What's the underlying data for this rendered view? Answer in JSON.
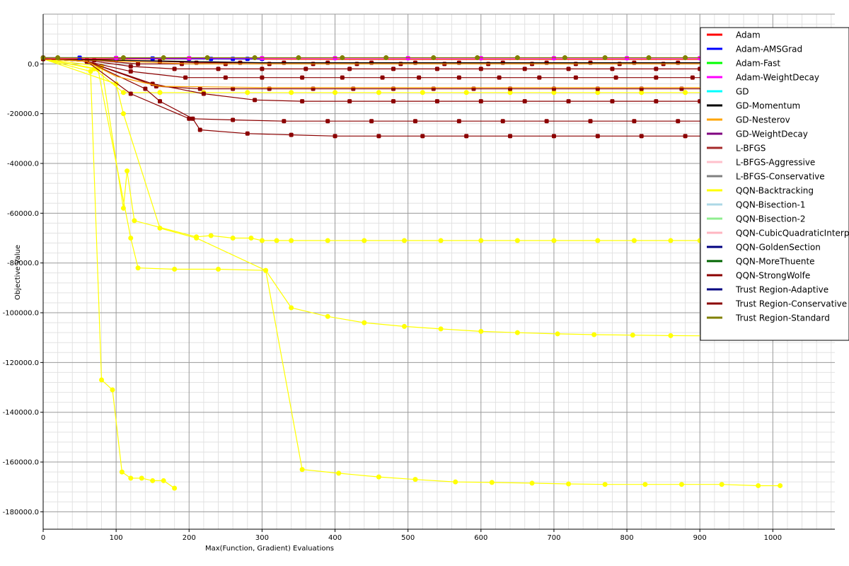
{
  "chart_data": {
    "type": "line",
    "title": "",
    "xlabel": "Max(Function, Gradient) Evaluations",
    "ylabel": "Objective Value",
    "xlim": [
      0,
      1085
    ],
    "ylim": [
      -187000,
      20000
    ],
    "grid": true,
    "legend_position": "top-right",
    "x_ticks": [
      "0",
      "100",
      "200",
      "300",
      "400",
      "500",
      "600",
      "700",
      "800",
      "900",
      "1000"
    ],
    "y_ticks": [
      "0.0",
      "-20000.0",
      "-40000.0",
      "-60000.0",
      "-80000.0",
      "-100000.0",
      "-120000.0",
      "-140000.0",
      "-160000.0",
      "-180000.0"
    ],
    "legend": [
      {
        "name": "Adam",
        "color": "#ff0000"
      },
      {
        "name": "Adam-AMSGrad",
        "color": "#0000ff"
      },
      {
        "name": "Adam-Fast",
        "color": "#00ff00"
      },
      {
        "name": "Adam-WeightDecay",
        "color": "#ff00ff"
      },
      {
        "name": "GD",
        "color": "#00ffff"
      },
      {
        "name": "GD-Momentum",
        "color": "#000000"
      },
      {
        "name": "GD-Nesterov",
        "color": "#ffa500"
      },
      {
        "name": "GD-WeightDecay",
        "color": "#800080"
      },
      {
        "name": "L-BFGS",
        "color": "#a52a2a"
      },
      {
        "name": "L-BFGS-Aggressive",
        "color": "#ffc0cb"
      },
      {
        "name": "L-BFGS-Conservative",
        "color": "#808080"
      },
      {
        "name": "QQN-Backtracking",
        "color": "#ffff00"
      },
      {
        "name": "QQN-Bisection-1",
        "color": "#add8e6"
      },
      {
        "name": "QQN-Bisection-2",
        "color": "#90ee90"
      },
      {
        "name": "QQN-CubicQuadraticInterpolation",
        "color": "#ffb6c1"
      },
      {
        "name": "QQN-GoldenSection",
        "color": "#000080"
      },
      {
        "name": "QQN-MoreThuente",
        "color": "#006400"
      },
      {
        "name": "QQN-StrongWolfe",
        "color": "#8b0000"
      },
      {
        "name": "Trust Region-Adaptive",
        "color": "#000080"
      },
      {
        "name": "Trust Region-Conservative",
        "color": "#8b0000"
      },
      {
        "name": "Trust Region-Standard",
        "color": "#808000"
      }
    ],
    "series": [
      {
        "color": "#ffff00",
        "marker": "circle",
        "x": [
          0,
          65,
          80,
          95,
          108,
          120,
          135,
          150,
          165,
          180
        ],
        "y": [
          2000,
          -3000,
          -127000,
          -131000,
          -164000,
          -166500,
          -166500,
          -167500,
          -167500,
          -170500
        ]
      },
      {
        "color": "#ffff00",
        "marker": "circle",
        "x": [
          0,
          80,
          110,
          115,
          125,
          210,
          230,
          260,
          285,
          300,
          320,
          340,
          390,
          440,
          495,
          545,
          600,
          650,
          700,
          760,
          810,
          860,
          900,
          950,
          1000
        ],
        "y": [
          2000,
          -1000,
          -58000,
          -43000,
          -63000,
          -69500,
          -69000,
          -70000,
          -70000,
          -71000,
          -71000,
          -71000,
          -71000,
          -71000,
          -71000,
          -71000,
          -71000,
          -71000,
          -71000,
          -71000,
          -71000,
          -71000,
          -71000,
          -71000,
          -71000
        ]
      },
      {
        "color": "#ffff00",
        "marker": "circle",
        "x": [
          0,
          75,
          120,
          130,
          180,
          240,
          305,
          340,
          390,
          440,
          495,
          545,
          600,
          650,
          705,
          755,
          808,
          860,
          910,
          960
        ],
        "y": [
          2000,
          -2000,
          -70000,
          -82000,
          -82500,
          -82500,
          -83000,
          -98000,
          -101500,
          -104000,
          -105500,
          -106500,
          -107500,
          -108000,
          -108500,
          -108800,
          -109000,
          -109200,
          -109300,
          -109400
        ]
      },
      {
        "color": "#ffff00",
        "marker": "circle",
        "x": [
          0,
          100,
          110,
          160,
          210,
          305,
          355,
          405,
          460,
          510,
          565,
          615,
          670,
          720,
          770,
          825,
          875,
          930,
          980,
          1010
        ],
        "y": [
          2000,
          -8000,
          -20000,
          -66000,
          -70000,
          -83000,
          -163000,
          -164500,
          -166000,
          -167000,
          -168000,
          -168200,
          -168500,
          -168800,
          -169000,
          -169000,
          -169000,
          -169000,
          -169500,
          -169500
        ]
      },
      {
        "color": "#ffff00",
        "marker": "circle",
        "x": [
          0,
          70,
          110,
          160,
          220,
          280,
          340,
          400,
          460,
          520,
          580,
          640,
          700,
          760,
          820,
          880,
          940,
          1000
        ],
        "y": [
          2000,
          -2000,
          -11500,
          -11500,
          -11500,
          -11500,
          -11500,
          -11500,
          -11500,
          -11500,
          -11500,
          -11500,
          -11500,
          -11500,
          -11500,
          -11500,
          -11500,
          -11500
        ]
      },
      {
        "color": "#8b0000",
        "marker": "square",
        "x": [
          0,
          60,
          140,
          160,
          205,
          215,
          280,
          340,
          400,
          460,
          520,
          580,
          640,
          700,
          760,
          820,
          880,
          940,
          1000
        ],
        "y": [
          2000,
          1000,
          -10000,
          -15000,
          -22000,
          -26500,
          -28000,
          -28500,
          -29000,
          -29000,
          -29000,
          -29000,
          -29000,
          -29000,
          -29000,
          -29000,
          -29000,
          -29000,
          -29000
        ]
      },
      {
        "color": "#8b0000",
        "marker": "square",
        "x": [
          0,
          60,
          120,
          200,
          260,
          330,
          390,
          450,
          510,
          570,
          630,
          690,
          750,
          810,
          870,
          930,
          990
        ],
        "y": [
          2000,
          1000,
          -12000,
          -22000,
          -22500,
          -23000,
          -23000,
          -23000,
          -23000,
          -23000,
          -23000,
          -23000,
          -23000,
          -23000,
          -23000,
          -23000,
          -23000
        ]
      },
      {
        "color": "#8b0000",
        "marker": "square",
        "x": [
          0,
          60,
          150,
          220,
          290,
          355,
          420,
          480,
          540,
          600,
          660,
          720,
          780,
          840,
          900,
          960
        ],
        "y": [
          2000,
          1000,
          -8000,
          -12000,
          -14500,
          -15000,
          -15000,
          -15000,
          -15000,
          -15000,
          -15000,
          -15000,
          -15000,
          -15000,
          -15000,
          -15000
        ]
      },
      {
        "color": "#8b0000",
        "marker": "square",
        "x": [
          0,
          60,
          155,
          215,
          260,
          310,
          370,
          425,
          480,
          535,
          590,
          640,
          700,
          760,
          820,
          875,
          935,
          985
        ],
        "y": [
          2000,
          1000,
          -9000,
          -10000,
          -10000,
          -10000,
          -10000,
          -10000,
          -10000,
          -10000,
          -10000,
          -10000,
          -10000,
          -10000,
          -10000,
          -10000,
          -10000,
          -10000
        ]
      },
      {
        "color": "#8b0000",
        "marker": "square",
        "x": [
          0,
          60,
          120,
          195,
          250,
          300,
          355,
          410,
          465,
          515,
          570,
          625,
          680,
          730,
          785,
          840,
          890,
          945,
          995
        ],
        "y": [
          2000,
          1000,
          -3000,
          -5500,
          -5500,
          -5500,
          -5500,
          -5500,
          -5500,
          -5500,
          -5500,
          -5500,
          -5500,
          -5500,
          -5500,
          -5500,
          -5500,
          -5500,
          -5500
        ]
      },
      {
        "color": "#8b0000",
        "marker": "square",
        "x": [
          0,
          60,
          120,
          180,
          240,
          300,
          360,
          420,
          480,
          540,
          600,
          660,
          720,
          780,
          840,
          900,
          960
        ],
        "y": [
          2000,
          1500,
          -1000,
          -2000,
          -2000,
          -2000,
          -2000,
          -2000,
          -2000,
          -2000,
          -2000,
          -2000,
          -2000,
          -2000,
          -2000,
          -2000,
          -2000
        ]
      },
      {
        "color": "#8b0000",
        "marker": "square",
        "x": [
          0,
          70,
          130,
          190,
          250,
          310,
          370,
          430,
          490,
          550,
          610,
          670,
          730,
          790,
          850,
          910,
          970
        ],
        "y": [
          2000,
          1500,
          0,
          0,
          0,
          0,
          0,
          0,
          0,
          0,
          0,
          0,
          0,
          0,
          0,
          0,
          0
        ]
      },
      {
        "color": "#8b0000",
        "marker": "square",
        "x": [
          0,
          50,
          100,
          160,
          210,
          270,
          330,
          390,
          450,
          510,
          570,
          630,
          690,
          750,
          810,
          870,
          930
        ],
        "y": [
          2000,
          2000,
          1500,
          1000,
          500,
          500,
          500,
          500,
          500,
          500,
          500,
          500,
          500,
          500,
          500,
          500,
          500
        ]
      },
      {
        "color": "#ffa500",
        "marker": "none",
        "x": [
          0,
          60,
          100,
          160,
          300,
          500,
          700,
          900,
          1080
        ],
        "y": [
          2000,
          1000,
          -5000,
          -9000,
          -9500,
          -9500,
          -9500,
          -9500,
          -9500
        ]
      },
      {
        "color": "#ffa500",
        "marker": "none",
        "x": [
          0,
          70,
          200,
          400,
          700,
          1080
        ],
        "y": [
          2000,
          1500,
          0,
          0,
          0,
          0
        ]
      },
      {
        "color": "#000000",
        "marker": "none",
        "x": [
          0,
          100,
          300,
          500,
          800,
          1080
        ],
        "y": [
          2000,
          1500,
          500,
          500,
          500,
          500
        ]
      },
      {
        "color": "#ff0000",
        "marker": "none",
        "x": [
          0,
          200,
          400,
          700,
          1000,
          1080
        ],
        "y": [
          2000,
          2000,
          1800,
          1800,
          1800,
          1800
        ]
      },
      {
        "color": "#0000ff",
        "marker": "square",
        "x": [
          0,
          50,
          100,
          150,
          200,
          230,
          260,
          280,
          300
        ],
        "y": [
          2500,
          2500,
          2300,
          2200,
          2100,
          2000,
          2000,
          2000,
          2000
        ]
      },
      {
        "color": "#ff00ff",
        "marker": "square",
        "x": [
          0,
          100,
          200,
          300,
          400,
          500,
          600,
          700,
          800,
          900,
          1000
        ],
        "y": [
          2500,
          2400,
          2300,
          2300,
          2300,
          2300,
          2300,
          2300,
          2300,
          2300,
          2300
        ]
      },
      {
        "color": "#808000",
        "marker": "circle",
        "x": [
          0,
          20,
          110,
          165,
          225,
          290,
          350,
          410,
          470,
          535,
          595,
          650,
          715,
          770,
          830,
          880,
          910,
          970
        ],
        "y": [
          2500,
          2500,
          2500,
          2500,
          2500,
          2500,
          2500,
          2500,
          2500,
          2500,
          2500,
          2500,
          2500,
          2500,
          2500,
          2500,
          2500,
          2500
        ]
      }
    ]
  }
}
